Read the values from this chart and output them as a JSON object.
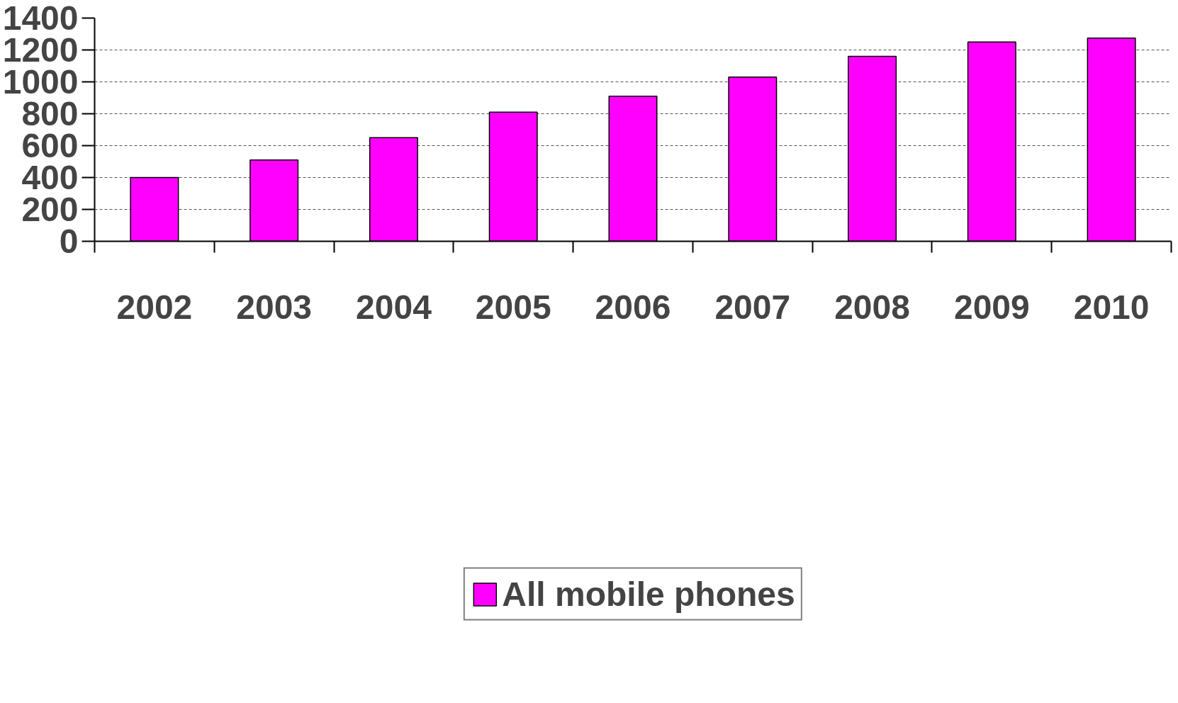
{
  "chart_data": {
    "type": "bar",
    "categories": [
      "2002",
      "2003",
      "2004",
      "2005",
      "2006",
      "2007",
      "2008",
      "2009",
      "2010"
    ],
    "series": [
      {
        "name": "All mobile phones",
        "color": "#ff00ff",
        "values": [
          400,
          510,
          650,
          810,
          910,
          1030,
          1160,
          1250,
          1275
        ]
      }
    ],
    "ylim": [
      0,
      1400
    ],
    "yticks": [
      0,
      200,
      400,
      600,
      800,
      1000,
      1200,
      1400
    ],
    "grid": "y",
    "legend": "bottom"
  }
}
